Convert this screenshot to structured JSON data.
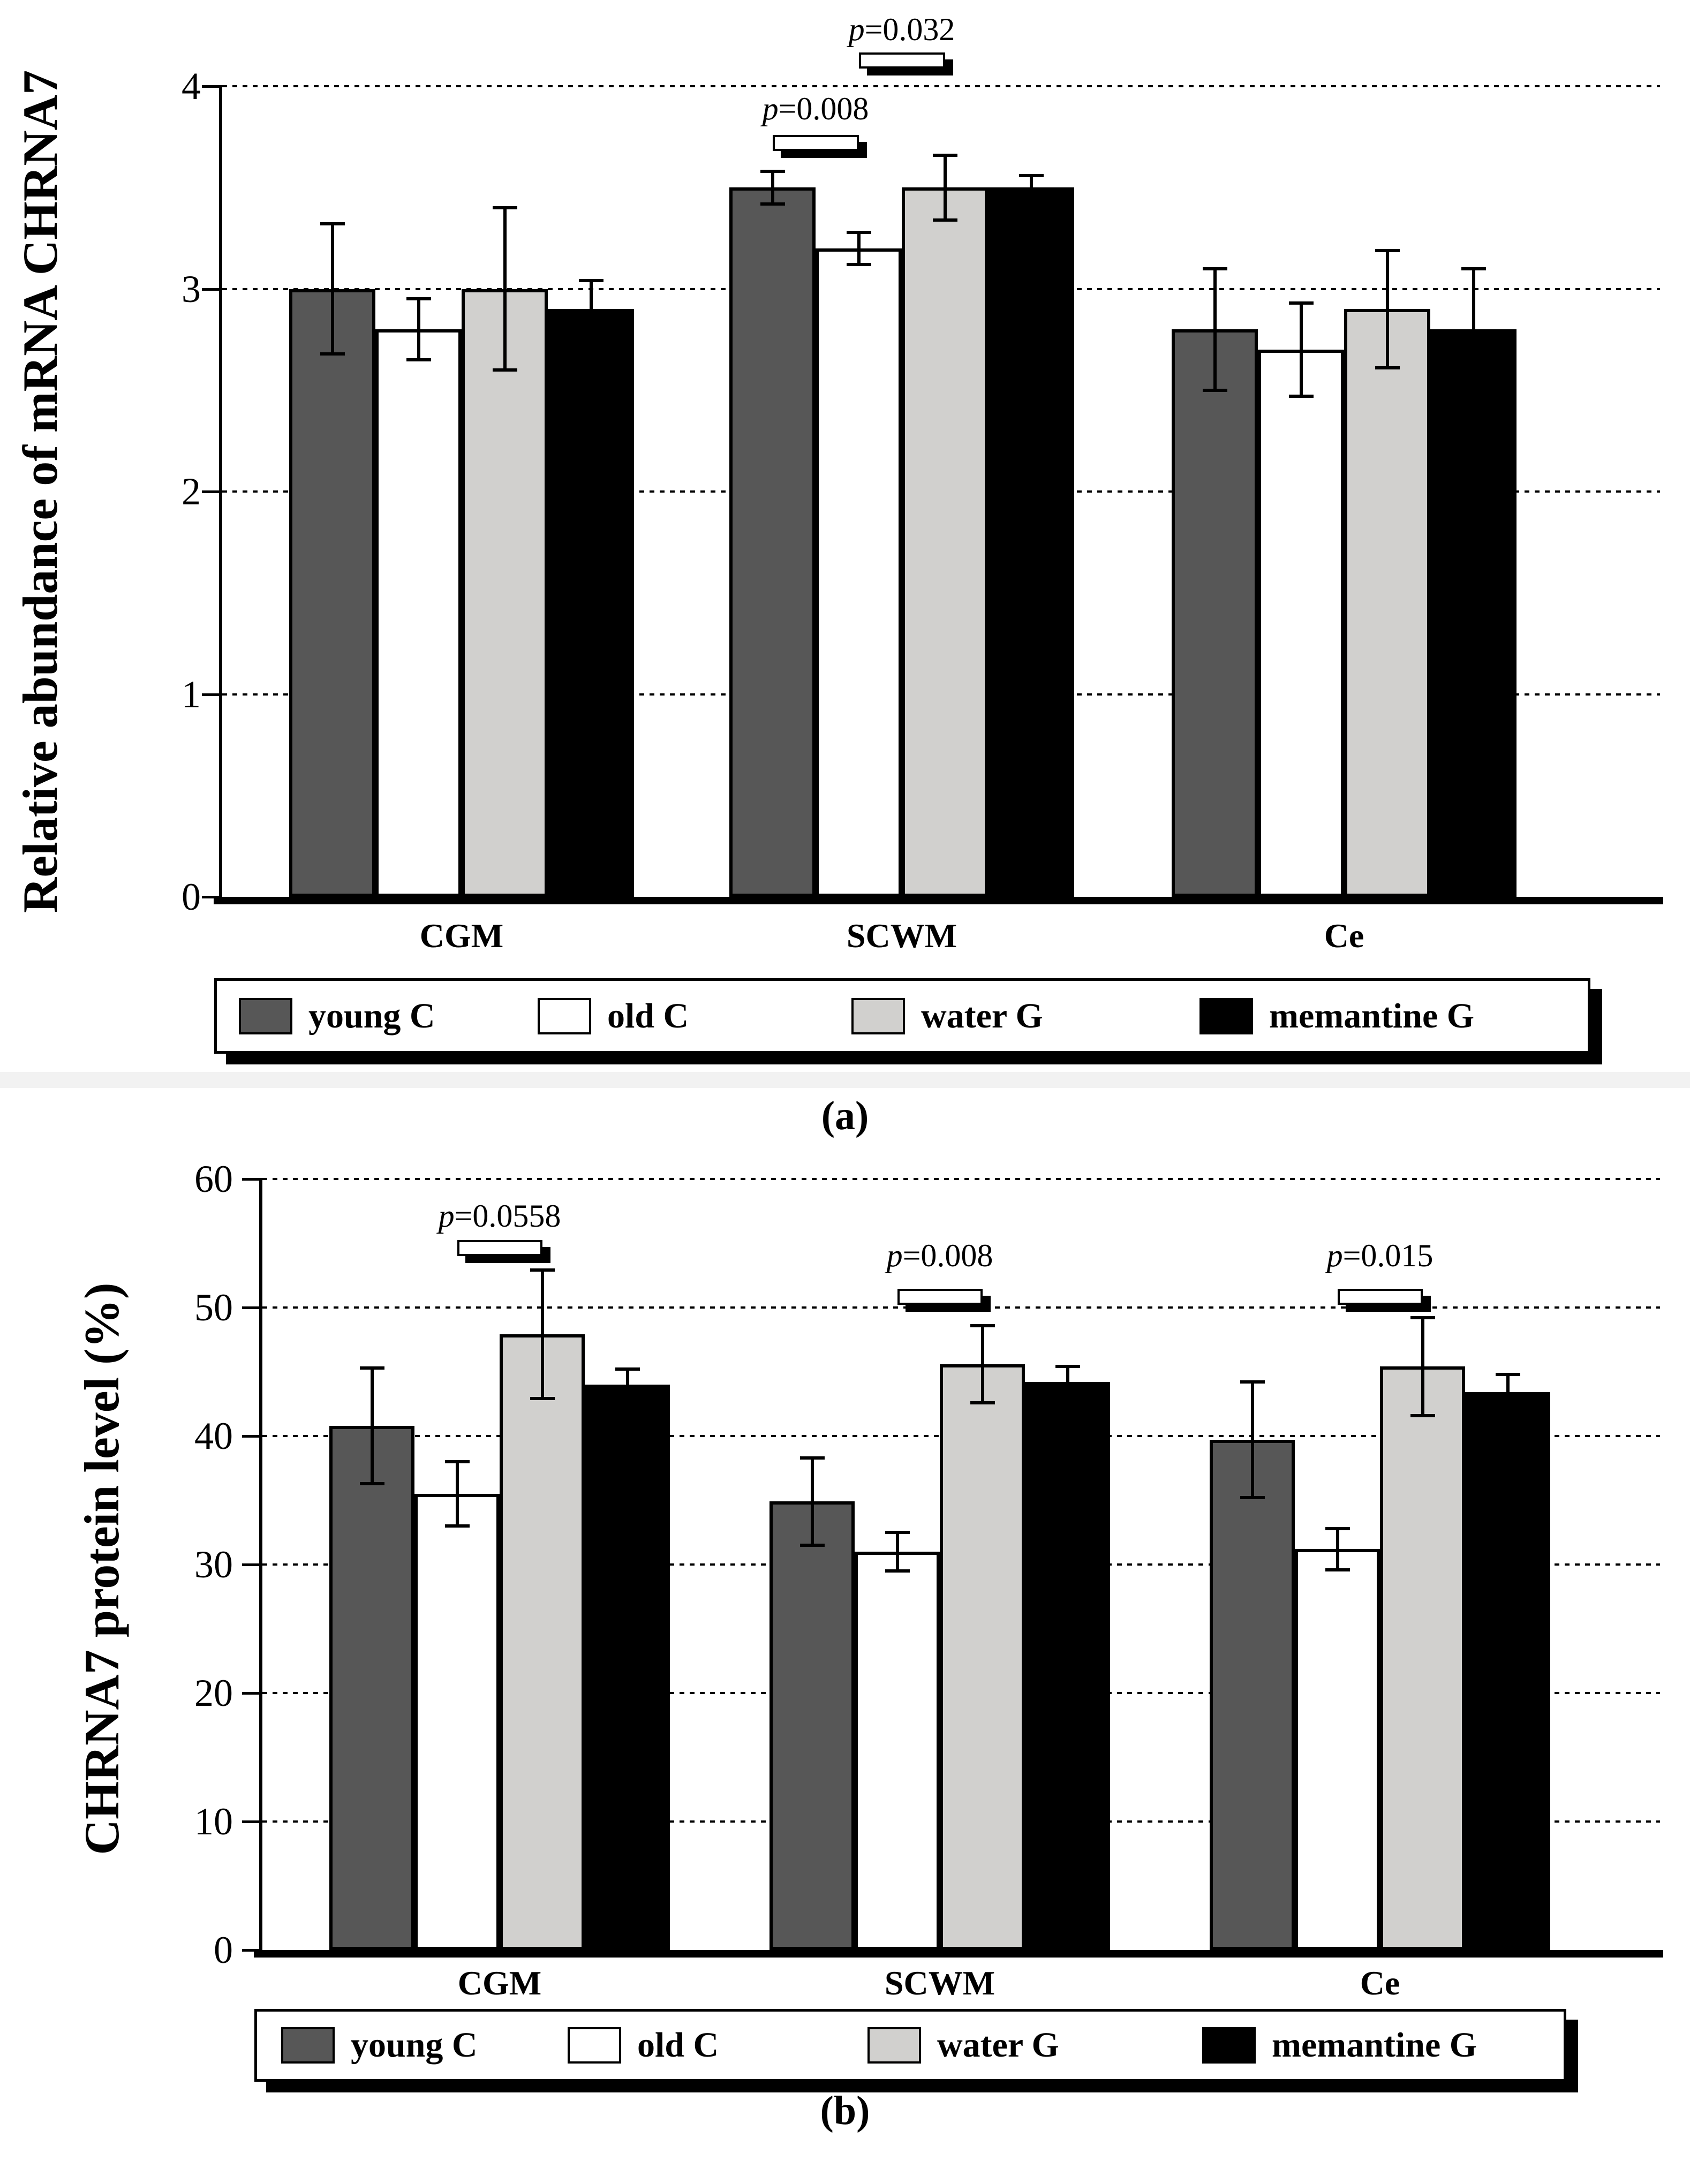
{
  "figure": {
    "captions": {
      "a": "(a)",
      "b": "(b)"
    },
    "separator_color": "#f2f2f2"
  },
  "chart_data": [
    {
      "panel": "a",
      "type": "bar",
      "title": "",
      "ylabel": "Relative abundance of mRNA CHRNA7",
      "xlabel": "",
      "categories": [
        "CGM",
        "SCWM",
        "Ce"
      ],
      "series": [
        {
          "name": "young C",
          "color": "#575757",
          "values": [
            3.0,
            3.5,
            2.8
          ],
          "errors": [
            0.32,
            0.08,
            0.3
          ]
        },
        {
          "name": "old C",
          "color": "#ffffff",
          "values": [
            2.8,
            3.2,
            2.7
          ],
          "errors": [
            0.15,
            0.08,
            0.23
          ]
        },
        {
          "name": "water G",
          "color": "#d1d0ce",
          "values": [
            3.0,
            3.5,
            2.9
          ],
          "errors": [
            0.4,
            0.16,
            0.29
          ]
        },
        {
          "name": "memantine G",
          "color": "#000000",
          "values": [
            2.9,
            3.5,
            2.8
          ],
          "errors": [
            0.14,
            0.06,
            0.3
          ]
        }
      ],
      "ylim": [
        0,
        4
      ],
      "yticks": [
        0,
        1,
        2,
        3,
        4
      ],
      "grid": "dotted-horizontal",
      "legend_position": "bottom",
      "annotations": [
        {
          "label": "p=0.008",
          "category": "SCWM",
          "between": [
            "young C",
            "old C"
          ]
        },
        {
          "label": "p=0.032",
          "category": "SCWM",
          "between": [
            "old C",
            "water G"
          ]
        }
      ]
    },
    {
      "panel": "b",
      "type": "bar",
      "title": "",
      "ylabel": "CHRNA7 protein level (%)",
      "xlabel": "",
      "categories": [
        "CGM",
        "SCWM",
        "Ce"
      ],
      "series": [
        {
          "name": "young C",
          "color": "#575757",
          "values": [
            40.8,
            34.9,
            39.7
          ],
          "errors": [
            4.5,
            3.4,
            4.5
          ]
        },
        {
          "name": "old C",
          "color": "#ffffff",
          "values": [
            35.5,
            31.0,
            31.2
          ],
          "errors": [
            2.5,
            1.5,
            1.6
          ]
        },
        {
          "name": "water G",
          "color": "#d1d0ce",
          "values": [
            47.9,
            45.6,
            45.4
          ],
          "errors": [
            5.0,
            3.0,
            3.8
          ]
        },
        {
          "name": "memantine G",
          "color": "#000000",
          "values": [
            44.0,
            44.2,
            43.4
          ],
          "errors": [
            1.2,
            1.2,
            1.4
          ]
        }
      ],
      "ylim": [
        0,
        60
      ],
      "yticks": [
        0,
        10,
        20,
        30,
        40,
        50,
        60
      ],
      "grid": "dotted-horizontal",
      "legend_position": "bottom",
      "annotations": [
        {
          "label": "p=0.0558",
          "category": "CGM",
          "between": [
            "old C",
            "water G"
          ]
        },
        {
          "label": "p=0.008",
          "category": "SCWM",
          "between": [
            "old C",
            "water G"
          ]
        },
        {
          "label": "p=0.015",
          "category": "Ce",
          "between": [
            "old C",
            "water G"
          ]
        }
      ]
    }
  ]
}
